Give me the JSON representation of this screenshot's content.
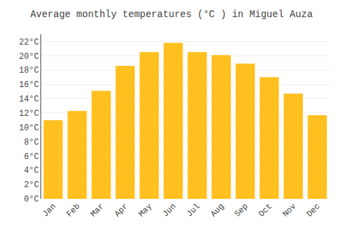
{
  "chart_data": {
    "type": "bar",
    "title": "Average monthly temperatures (°C ) in Miguel Auza",
    "categories": [
      "Jan",
      "Feb",
      "Mar",
      "Apr",
      "May",
      "Jun",
      "Jul",
      "Aug",
      "Sep",
      "Oct",
      "Nov",
      "Dec"
    ],
    "values": [
      11.0,
      12.3,
      15.1,
      18.6,
      20.5,
      21.8,
      20.5,
      20.1,
      18.9,
      17.0,
      14.7,
      11.7
    ],
    "color": "#FFC020",
    "ylim": [
      0,
      23
    ],
    "yticks": [
      {
        "value": 0,
        "label": "0°C"
      },
      {
        "value": 2,
        "label": "2°C"
      },
      {
        "value": 4,
        "label": "4°C"
      },
      {
        "value": 6,
        "label": "6°C"
      },
      {
        "value": 8,
        "label": "8°C"
      },
      {
        "value": 10,
        "label": "10°C"
      },
      {
        "value": 12,
        "label": "12°C"
      },
      {
        "value": 14,
        "label": "14°C"
      },
      {
        "value": 16,
        "label": "16°C"
      },
      {
        "value": 18,
        "label": "18°C"
      },
      {
        "value": 20,
        "label": "20°C"
      },
      {
        "value": 22,
        "label": "22°C"
      }
    ],
    "grid": true
  }
}
